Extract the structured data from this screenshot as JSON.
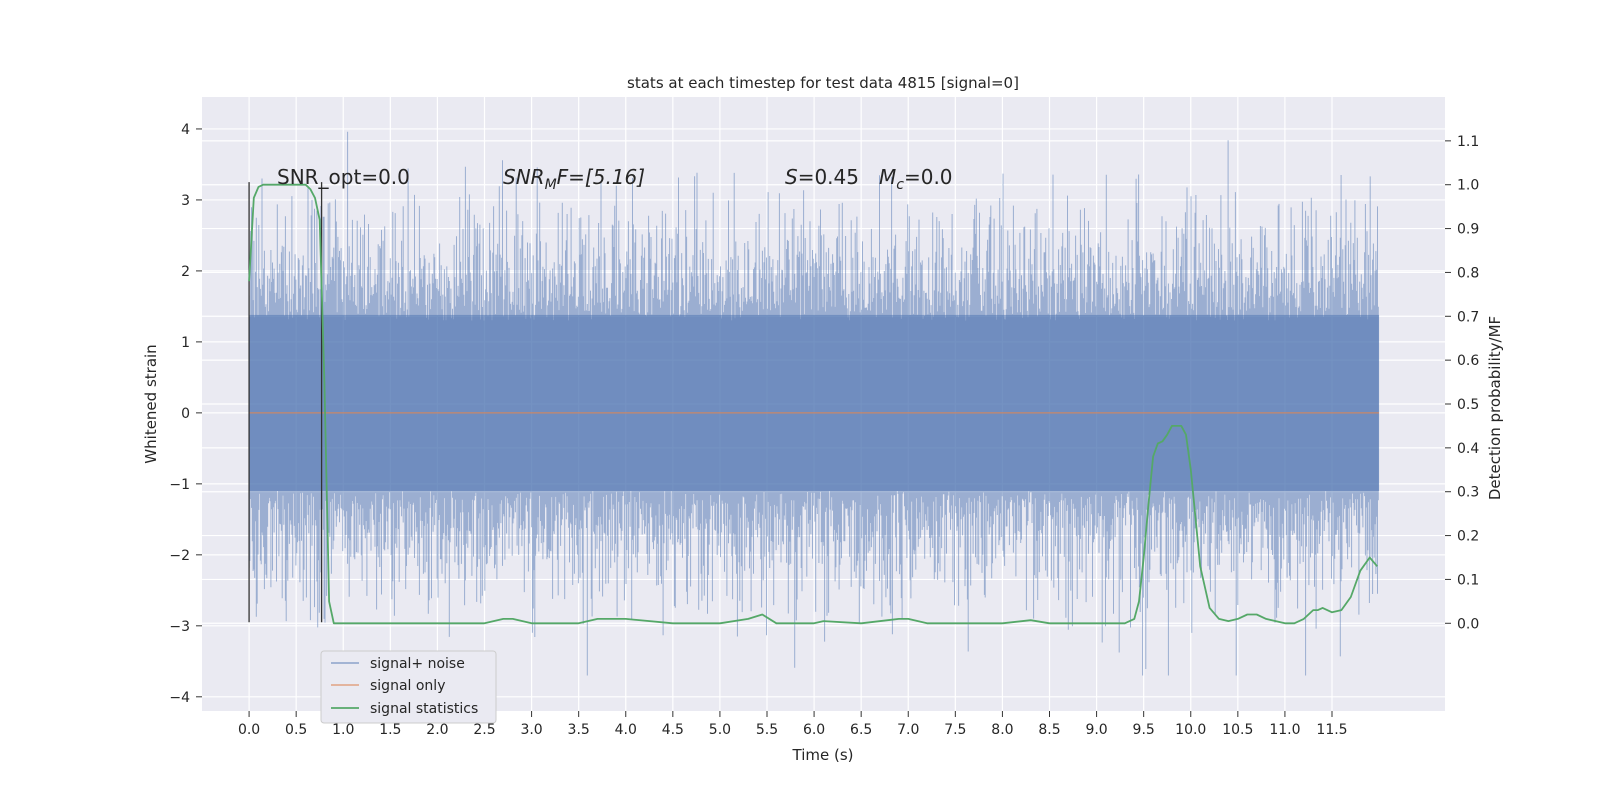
{
  "chart_data": {
    "type": "line",
    "title": "stats at each timestep for test data 4815 [signal=0]",
    "xlabel": "Time (s)",
    "ylabel_left": "Whitened strain",
    "ylabel_right": "Detection probability/MF",
    "xlim": [
      -0.5,
      12.7
    ],
    "ylim_left": [
      -4.2,
      4.45
    ],
    "ylim_right": [
      -0.2,
      1.2
    ],
    "x_ticks": [
      "0.0",
      "0.5",
      "1.0",
      "1.5",
      "2.0",
      "2.5",
      "3.0",
      "3.5",
      "4.0",
      "4.5",
      "5.0",
      "5.5",
      "6.0",
      "6.5",
      "7.0",
      "7.5",
      "8.0",
      "8.5",
      "9.0",
      "9.5",
      "10.0",
      "10.5",
      "11.0",
      "11.5"
    ],
    "y_left_ticks": [
      "−4",
      "−3",
      "−2",
      "−1",
      "0",
      "1",
      "2",
      "3",
      "4"
    ],
    "y_right_ticks": [
      "0.0",
      "0.1",
      "0.2",
      "0.3",
      "0.4",
      "0.5",
      "0.6",
      "0.7",
      "0.8",
      "0.9",
      "1.0",
      "1.1"
    ],
    "grid": true,
    "legend_position": "lower-left",
    "annotations": {
      "snr_opt": "SNR_opt=0.0",
      "snr_mf_base": "SNR",
      "snr_mf_sub": "M",
      "snr_mf_rest": "F=[5.16]",
      "s_text_var": "S",
      "s_text_val": "=0.45",
      "mc_var": "M",
      "mc_sub": "c",
      "mc_val": "=0.0"
    },
    "markers": {
      "x": [
        0.0,
        0.77
      ],
      "y_range": [
        -2.95,
        3.25
      ]
    },
    "series": [
      {
        "name": "signal+ noise",
        "color": "#4c72b0",
        "axis": "left",
        "t_end": 12.0,
        "seed": 4815
      },
      {
        "name": "signal only",
        "color": "#dd8452",
        "axis": "left",
        "x": [
          0.0,
          12.0
        ],
        "y": [
          0.0,
          0.0
        ]
      },
      {
        "name": "signal statistics",
        "color": "#55a868",
        "axis": "right",
        "x": [
          0.0,
          0.05,
          0.1,
          0.15,
          0.2,
          0.3,
          0.4,
          0.5,
          0.6,
          0.65,
          0.7,
          0.75,
          0.8,
          0.85,
          0.9,
          0.95,
          1.0,
          1.5,
          2.0,
          2.5,
          2.7,
          2.8,
          3.0,
          3.5,
          3.7,
          4.0,
          4.5,
          5.0,
          5.3,
          5.45,
          5.6,
          5.8,
          6.0,
          6.1,
          6.5,
          6.9,
          7.0,
          7.2,
          7.5,
          8.0,
          8.3,
          8.5,
          9.0,
          9.3,
          9.4,
          9.45,
          9.5,
          9.55,
          9.6,
          9.65,
          9.7,
          9.75,
          9.8,
          9.85,
          9.9,
          9.95,
          10.0,
          10.05,
          10.1,
          10.2,
          10.3,
          10.4,
          10.5,
          10.6,
          10.7,
          10.8,
          11.0,
          11.1,
          11.2,
          11.3,
          11.35,
          11.4,
          11.5,
          11.6,
          11.7,
          11.8,
          11.9,
          11.98
        ],
        "y": [
          0.78,
          0.97,
          0.995,
          1.0,
          1.0,
          1.0,
          1.0,
          1.0,
          1.0,
          0.99,
          0.97,
          0.92,
          0.55,
          0.05,
          0.0,
          0.0,
          0.0,
          0.0,
          0.0,
          0.0,
          0.01,
          0.01,
          0.0,
          0.0,
          0.01,
          0.01,
          0.0,
          0.0,
          0.01,
          0.02,
          0.0,
          0.0,
          0.0,
          0.005,
          0.0,
          0.01,
          0.01,
          0.0,
          0.0,
          0.0,
          0.007,
          0.0,
          0.0,
          0.0,
          0.01,
          0.05,
          0.15,
          0.27,
          0.38,
          0.41,
          0.415,
          0.43,
          0.45,
          0.45,
          0.45,
          0.43,
          0.35,
          0.24,
          0.13,
          0.035,
          0.01,
          0.005,
          0.01,
          0.02,
          0.02,
          0.01,
          0.0,
          0.0,
          0.01,
          0.03,
          0.03,
          0.035,
          0.025,
          0.03,
          0.06,
          0.12,
          0.15,
          0.13
        ]
      }
    ]
  }
}
